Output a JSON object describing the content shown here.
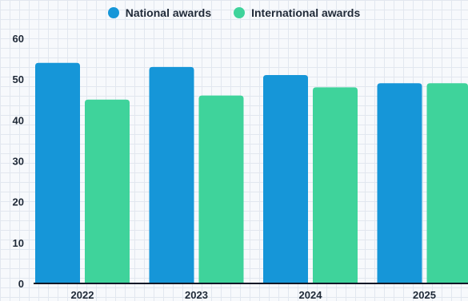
{
  "chart_data": {
    "type": "bar",
    "categories": [
      "2022",
      "2023",
      "2024",
      "2025"
    ],
    "series": [
      {
        "name": "National awards",
        "values": [
          54,
          53,
          51,
          49
        ]
      },
      {
        "name": "International awards",
        "values": [
          45,
          46,
          48,
          49
        ]
      }
    ],
    "title": "",
    "xlabel": "",
    "ylabel": "",
    "ylim": [
      0,
      60
    ],
    "yticks": [
      0,
      10,
      20,
      30,
      40,
      50,
      60
    ],
    "grid": true,
    "legend_position": "top-center",
    "colors": {
      "National awards": "#1696d8",
      "International awards": "#3fd39b"
    }
  }
}
